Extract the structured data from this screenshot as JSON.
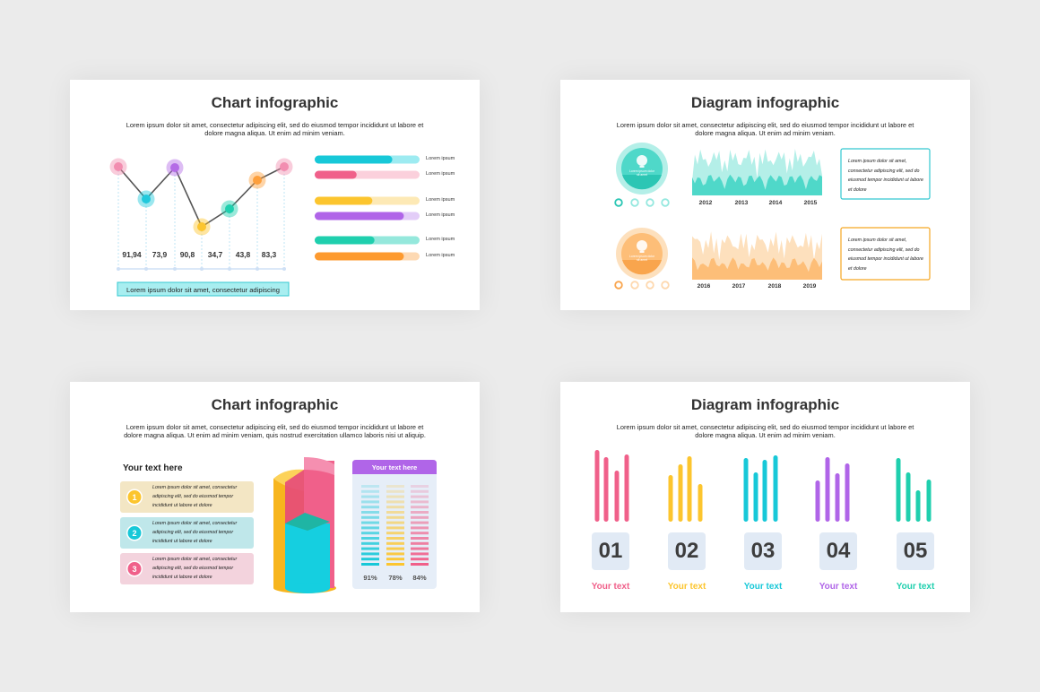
{
  "slides": [
    {
      "title": "Chart infographic",
      "text": "Lorem ipsum dolor sit amet, consectetur adipiscing elit, sed do eiusmod tempor incididunt ut labore et dolore magna aliqua. Ut enim ad minim veniam.",
      "values": [
        "91,94",
        "73,9",
        "90,8",
        "34,7",
        "43,8",
        "83,3"
      ],
      "bars": [
        "Lorem ipsum",
        "Lorem ipsum",
        "Lorem ipsum",
        "Lorem ipsum",
        "Lorem ipsum",
        "Lorem ipsum"
      ],
      "caption": "Lorem ipsum dolor sit amet, consectetur adipiscing"
    },
    {
      "title": "Diagram infographic",
      "text": "Lorem ipsum dolor sit amet, consectetur adipiscing elit, sed do eiusmod tempor incididunt ut labore et dolore magna aliqua. Ut enim ad minim veniam.",
      "rows": [
        {
          "badge": "Lorem ipsum dolor sit amet",
          "years": [
            "2012",
            "2013",
            "2014",
            "2015"
          ],
          "note": "Lorem ipsum dolor sit amet, consectetur adipiscing elit, sed do eiusmod tempor incididunt ut labore et dolore"
        },
        {
          "badge": "Lorem ipsum dolor sit amet",
          "years": [
            "2016",
            "2017",
            "2018",
            "2019"
          ],
          "note": "Lorem ipsum dolor sit amet, consectetur adipiscing elit, sed do eiusmod tempor incididunt ut labore et dolore"
        }
      ]
    },
    {
      "title": "Chart infographic",
      "text": "Lorem ipsum dolor sit amet, consectetur adipiscing elit, sed do eiusmod tempor incididunt ut labore et dolore magna aliqua. Ut enim ad minim veniam, quis nostrud exercitation ullamco laboris nisi ut aliquip.",
      "heading": "Your text here",
      "items": [
        {
          "number": "1",
          "text": "Lorem ipsum dolor sit amet, consectetur adipiscing elit, sed do eiusmod tempor incididunt ut labore et dolore"
        },
        {
          "number": "2",
          "text": "Lorem ipsum dolor sit amet, consectetur adipiscing elit, sed do eiusmod tempor incididunt ut labore et dolore"
        },
        {
          "number": "3",
          "text": "Lorem ipsum dolor sit amet, consectetur adipiscing elit, sed do eiusmod tempor incididunt ut labore et dolore"
        }
      ],
      "panel": {
        "title": "Your text here",
        "percents": [
          "91%",
          "78%",
          "84%"
        ]
      }
    },
    {
      "title": "Diagram infographic",
      "text": "Lorem ipsum dolor sit amet, consectetur adipiscing elit, sed do eiusmod tempor incididunt ut labore et dolore magna aliqua. Ut enim ad minim veniam.",
      "items": [
        {
          "number": "01",
          "label": "Your text"
        },
        {
          "number": "02",
          "label": "Your text"
        },
        {
          "number": "03",
          "label": "Your text"
        },
        {
          "number": "04",
          "label": "Your text"
        },
        {
          "number": "05",
          "label": "Your text"
        }
      ]
    }
  ]
}
